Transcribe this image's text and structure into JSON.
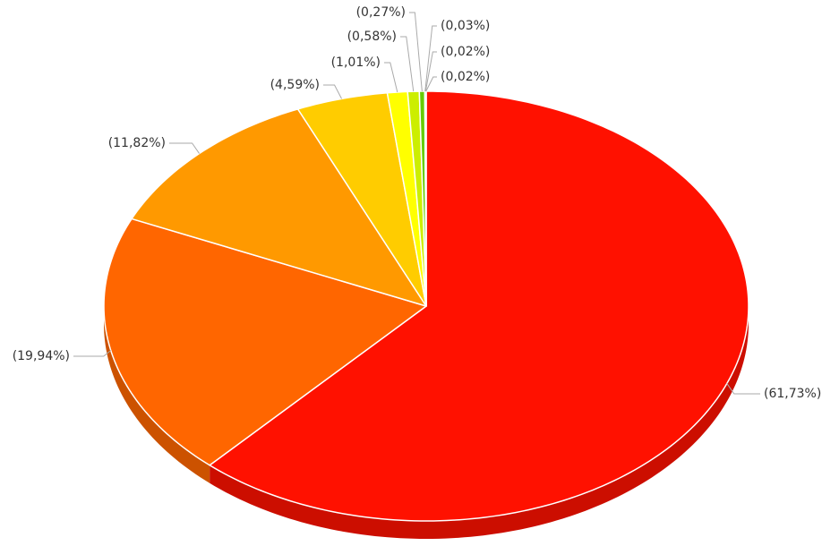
{
  "chart_data": {
    "type": "pie",
    "values": [
      61.73,
      19.94,
      11.82,
      4.59,
      1.01,
      0.58,
      0.27,
      0.03,
      0.02,
      0.02
    ],
    "value_labels": [
      "(61,73%)",
      "(19,94%)",
      "(11,82%)",
      "(4,59%)",
      "(1,01%)",
      "(0,58%)",
      "(0,27%)",
      "(0,03%)",
      "(0,02%)",
      "(0,02%)"
    ],
    "colors": [
      "#ff1100",
      "#ff6600",
      "#ff9900",
      "#ffcc00",
      "#ffff00",
      "#ccee00",
      "#66cc00",
      "#33bb00",
      "#22aa00",
      "#119900"
    ]
  }
}
